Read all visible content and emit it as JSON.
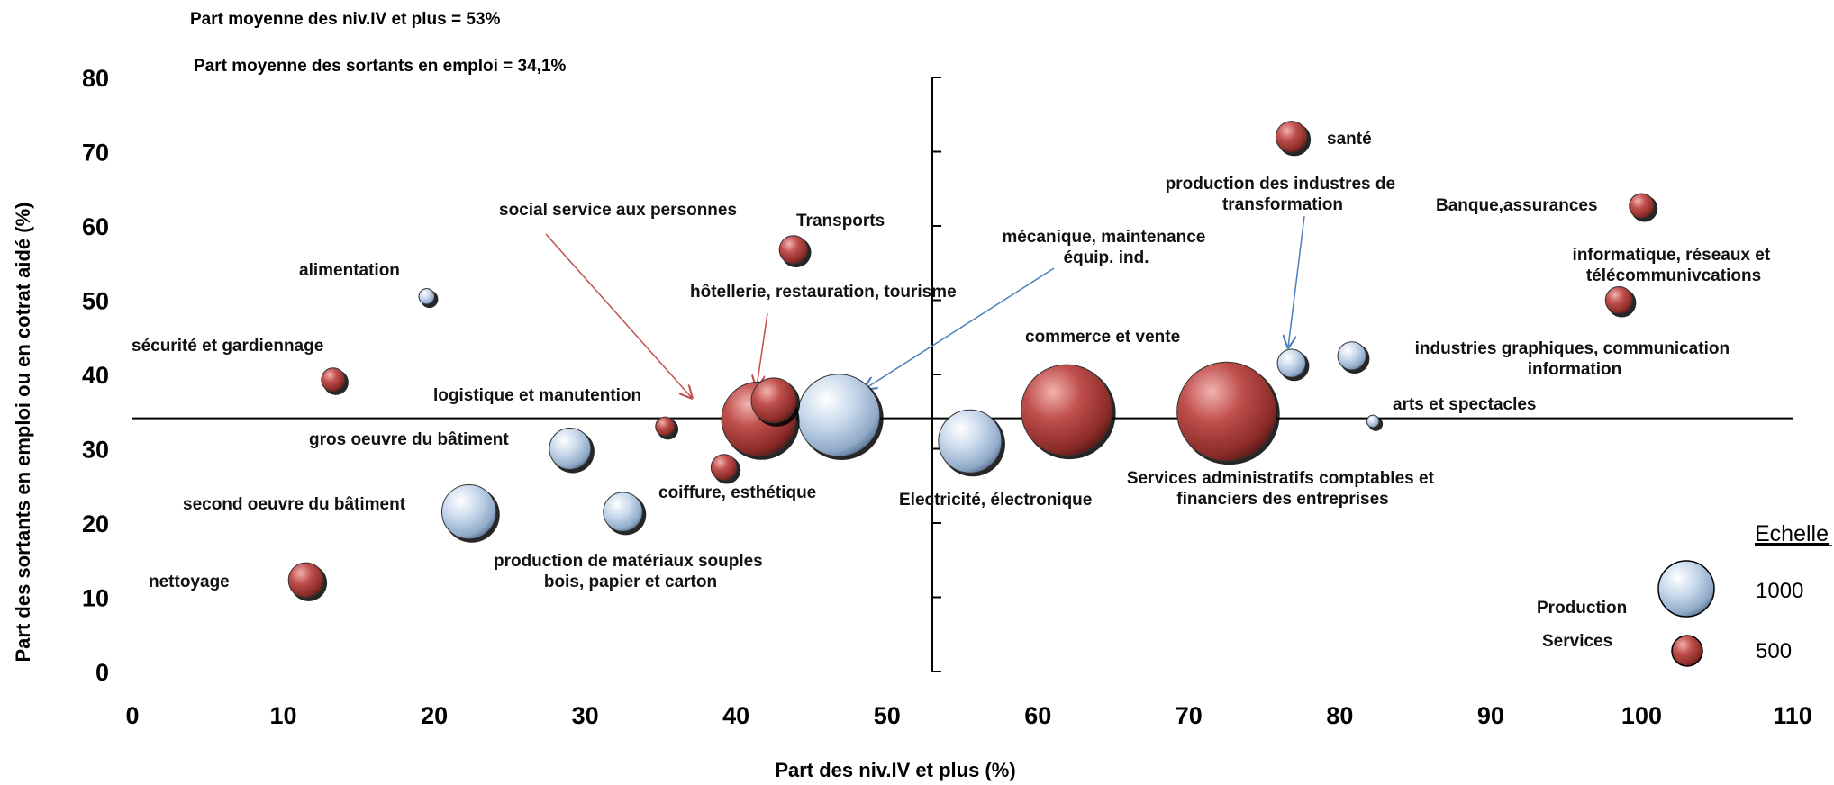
{
  "chart_data": {
    "type": "bubble",
    "notes": [
      "Part moyenne des niv.IV et plus = 53%",
      "Part moyenne des sortants en emploi = 34,1%"
    ],
    "xlabel": "Part des niv.IV et plus (%)",
    "ylabel": "Part des sortants  en emploi ou en cotrat aidé (%)",
    "xlim": [
      0,
      110
    ],
    "ylim": [
      0,
      80
    ],
    "xticks": [
      "0",
      "10",
      "20",
      "30",
      "40",
      "50",
      "60",
      "70",
      "80",
      "90",
      "100",
      "110"
    ],
    "yticks": [
      "0",
      "10",
      "20",
      "30",
      "40",
      "50",
      "60",
      "70",
      "80"
    ],
    "reference_lines": {
      "x": 53,
      "y": 34.1
    },
    "colors": {
      "Production": "#b8cde4",
      "Services": "#c0504d"
    },
    "points": [
      {
        "label": "alimentation",
        "group": "Production",
        "x": 19.5,
        "y": 50.5,
        "size": 40
      },
      {
        "label": "sécurité et gardiennage",
        "group": "Services",
        "x": 13.3,
        "y": 39.3,
        "size": 90
      },
      {
        "label": "logistique et manutention",
        "group": "Services",
        "x": 35.3,
        "y": 33.0,
        "size": 60
      },
      {
        "label": "gros oeuvre du bâtiment",
        "group": "Production",
        "x": 29.0,
        "y": 30.0,
        "size": 280
      },
      {
        "label": "second oeuvre du bâtiment",
        "group": "Production",
        "x": 22.3,
        "y": 21.5,
        "size": 480
      },
      {
        "label": "nettoyage",
        "group": "Services",
        "x": 11.5,
        "y": 12.3,
        "size": 200
      },
      {
        "label": "production de matériaux souples bois, papier et carton",
        "group": "Production",
        "x": 32.5,
        "y": 21.5,
        "size": 250
      },
      {
        "label": "coiffure, esthétique",
        "group": "Services",
        "x": 39.2,
        "y": 27.5,
        "size": 110
      },
      {
        "label": "Transports",
        "group": "Services",
        "x": 43.8,
        "y": 56.8,
        "size": 130
      },
      {
        "label": "hôtellerie, restauration, tourisme",
        "group": "Services",
        "x": 41.5,
        "y": 34.0,
        "size": 900
      },
      {
        "label": "social service aux personnes",
        "group": "Services",
        "x": 42.5,
        "y": 36.5,
        "size": 330
      },
      {
        "label": "mécanique, maintenance équip. ind.",
        "group": "Production",
        "x": 46.8,
        "y": 34.5,
        "size": 1100
      },
      {
        "label": "Electricité, électronique",
        "group": "Production",
        "x": 55.5,
        "y": 31.0,
        "size": 650
      },
      {
        "label": "commerce  et vente",
        "group": "Services",
        "x": 61.9,
        "y": 35.2,
        "size": 1350
      },
      {
        "label": "Services administratifs comptables et financiers des entreprises",
        "group": "Services",
        "x": 72.5,
        "y": 35.0,
        "size": 1600
      },
      {
        "label": "santé",
        "group": "Services",
        "x": 76.8,
        "y": 72.0,
        "size": 160
      },
      {
        "label": "production des industres de transformation",
        "group": "Production",
        "x": 76.8,
        "y": 41.5,
        "size": 130
      },
      {
        "label": "industries graphiques, communication information",
        "group": "Production",
        "x": 80.8,
        "y": 42.5,
        "size": 130
      },
      {
        "label": "arts et spectacles",
        "group": "Production",
        "x": 82.2,
        "y": 33.7,
        "size": 25
      },
      {
        "label": "Banque,assurances",
        "group": "Services",
        "x": 100.0,
        "y": 62.7,
        "size": 100
      },
      {
        "label": "informatique, réseaux et télécommunivcations",
        "group": "Services",
        "x": 98.5,
        "y": 50.0,
        "size": 120
      }
    ],
    "legend": {
      "title": "Echelle",
      "items": [
        {
          "label": "Production",
          "group": "Production",
          "size_label": "1000"
        },
        {
          "label": "Services",
          "group": "Services",
          "size_label": "500"
        }
      ]
    }
  }
}
